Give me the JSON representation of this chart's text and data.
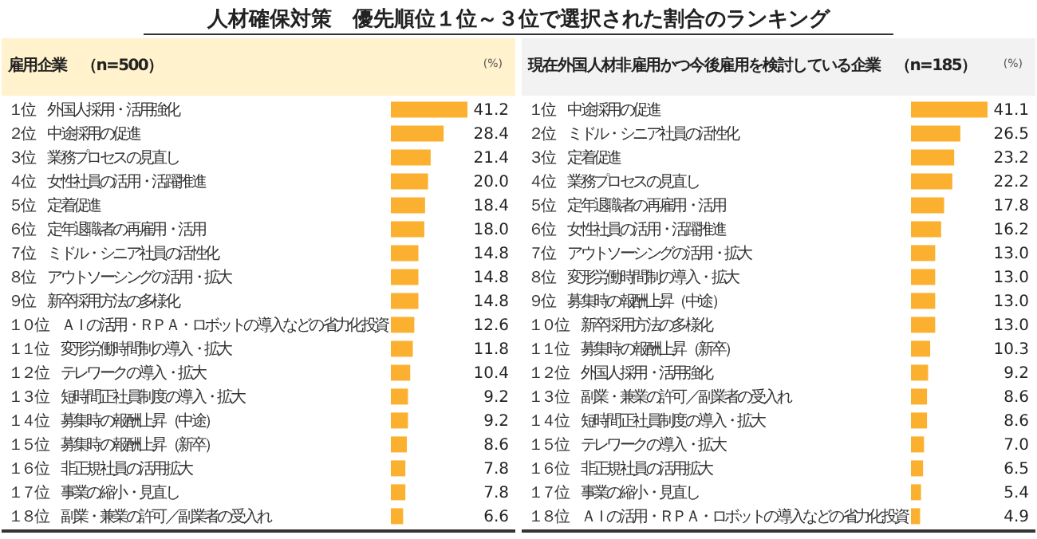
{
  "chart_data": [
    {
      "type": "bar",
      "orientation": "horizontal",
      "title": "人材確保対策　優先順位１位～３位で選択された割合のランキング",
      "subtitle": "雇用企業　（n=500）",
      "annotations": [
        "(%)"
      ],
      "color": "#fbb12f",
      "categories": [
        "１位　外国人採用・活用強化",
        "２位　中途採用の促進",
        "３位　業務プロセスの見直し",
        "４位　女性社員の活用・活躍推進",
        "５位　定着促進",
        "６位　定年退職者の再雇用・活用",
        "７位　ミドル・シニア社員の活性化",
        "８位　アウトソーシングの活用・拡大",
        "９位　新卒採用方法の多様化",
        "１０位　ＡＩの活用・ＲＰＡ・ロボットの導入などの省力化投資",
        "１１位　変形労働時間制の導入・拡大",
        "１２位　テレワークの導入・拡大",
        "１３位　短時間正社員制度の導入・拡大",
        "１４位　募集時の報酬上昇（中途）",
        "１５位　募集時の報酬上昇（新卒）",
        "１６位　非正規社員の活用拡大",
        "１７位　事業の縮小・見直し",
        "１８位　副業・兼業の許可／副業者の受入れ"
      ],
      "values": [
        41.2,
        28.4,
        21.4,
        20.0,
        18.4,
        18.0,
        14.8,
        14.8,
        14.8,
        12.6,
        11.8,
        10.4,
        9.2,
        9.2,
        8.6,
        7.8,
        7.8,
        6.6
      ],
      "value_labels": [
        "41.2",
        "28.4",
        "21.4",
        "20.0",
        "18.4",
        "18.0",
        "14.8",
        "14.8",
        "14.8",
        "12.6",
        "11.8",
        "10.4",
        "9.2",
        "9.2",
        "8.6",
        "7.8",
        "7.8",
        "6.6"
      ]
    },
    {
      "type": "bar",
      "orientation": "horizontal",
      "subtitle": "現在外国人材非雇用かつ今後雇用を検討している企業　（n=185）",
      "annotations": [
        "(%)"
      ],
      "color": "#fbb12f",
      "categories": [
        "１位　中途採用の促進",
        "２位　ミドル・シニア社員の活性化",
        "３位　定着促進",
        "４位　業務プロセスの見直し",
        "５位　定年退職者の再雇用・活用",
        "６位　女性社員の活用・活躍推進",
        "７位　アウトソーシングの活用・拡大",
        "８位　変形労働時間制の導入・拡大",
        "９位　募集時の報酬上昇（中途）",
        "１０位　新卒採用方法の多様化",
        "１１位　募集時の報酬上昇（新卒）",
        "１２位　外国人採用・活用強化",
        "１３位　副業・兼業の許可／副業者の受入れ",
        "１４位　短時間正社員制度の導入・拡大",
        "１５位　テレワークの導入・拡大",
        "１６位　非正規社員の活用拡大",
        "１７位　事業の縮小・見直し",
        "１８位　ＡＩの活用・ＲＰＡ・ロボットの導入などの省力化投資"
      ],
      "values": [
        41.1,
        26.5,
        23.2,
        22.2,
        17.8,
        16.2,
        13.0,
        13.0,
        13.0,
        13.0,
        10.3,
        9.2,
        8.6,
        8.6,
        7.0,
        6.5,
        5.4,
        4.9
      ],
      "value_labels": [
        "41.1",
        "26.5",
        "23.2",
        "22.2",
        "17.8",
        "16.2",
        "13.0",
        "13.0",
        "13.0",
        "13.0",
        "10.3",
        "9.2",
        "8.6",
        "8.6",
        "7.0",
        "6.5",
        "5.4",
        "4.9"
      ]
    }
  ]
}
